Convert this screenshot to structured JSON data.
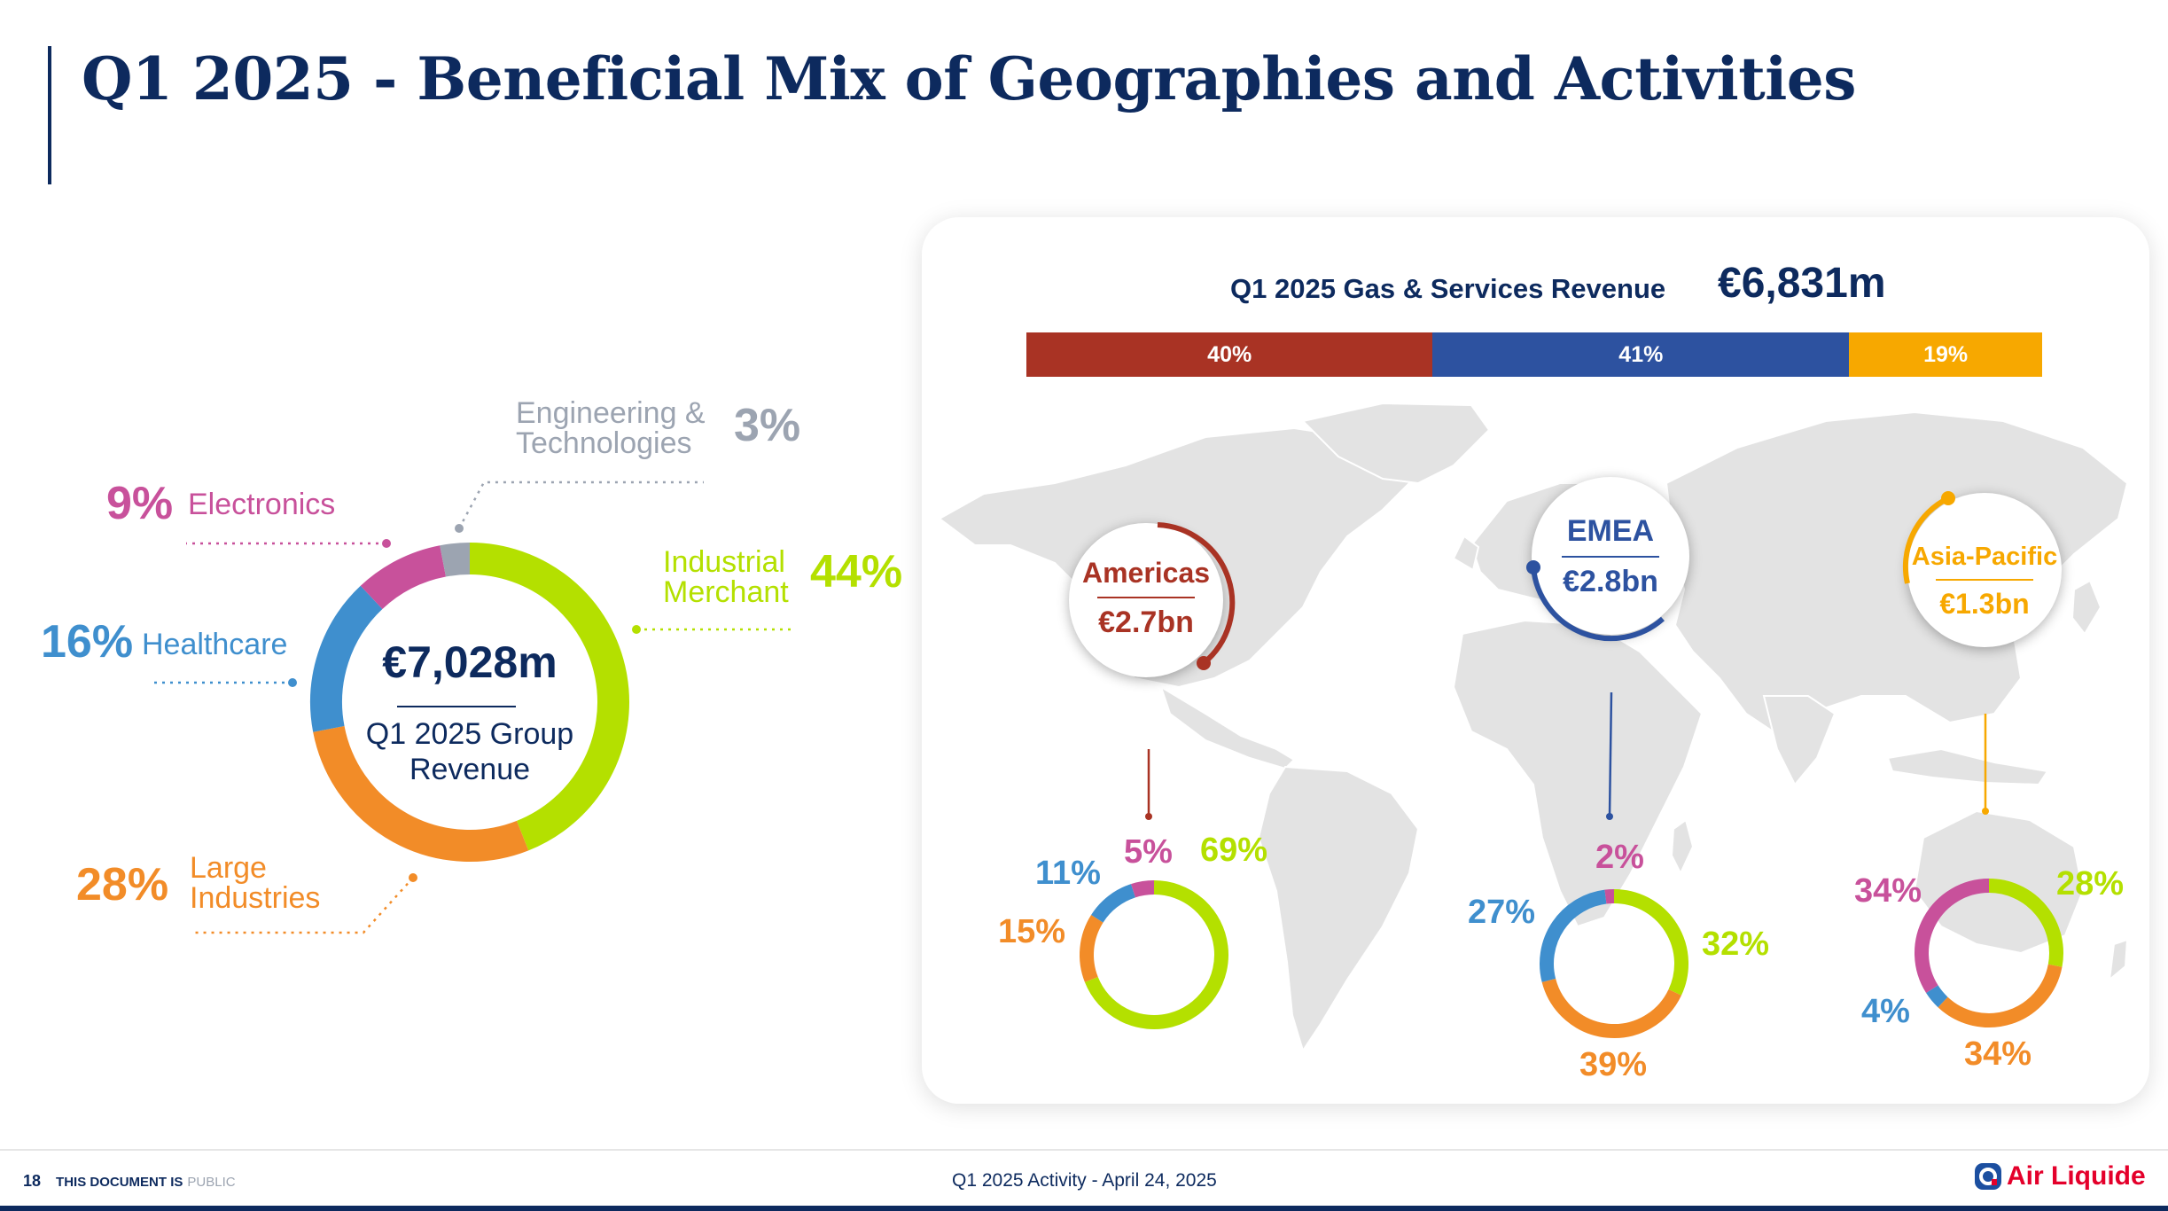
{
  "title": "Q1 2025 - Beneficial Mix of Geographies and Activities",
  "group": {
    "value": "€7,028m",
    "label_line1": "Q1 2025 Group",
    "label_line2": "Revenue",
    "segments": [
      {
        "name_line1": "Industrial",
        "name_line2": "Merchant",
        "pct_label": "44%",
        "pct": 44,
        "color": "#b4e000"
      },
      {
        "name_line1": "Large",
        "name_line2": "Industries",
        "pct_label": "28%",
        "pct": 28,
        "color": "#f28c28"
      },
      {
        "name_line1": "Healthcare",
        "name_line2": "",
        "pct_label": "16%",
        "pct": 16,
        "color": "#3f8fce"
      },
      {
        "name_line1": "Electronics",
        "name_line2": "",
        "pct_label": "9%",
        "pct": 9,
        "color": "#c8519b"
      },
      {
        "name_line1": "Engineering &",
        "name_line2": "Technologies",
        "pct_label": "3%",
        "pct": 3,
        "color": "#9ca4b1"
      }
    ]
  },
  "gas_services": {
    "title": "Q1 2025 Gas & Services Revenue",
    "value": "€6,831m",
    "bar": [
      {
        "label": "40%",
        "pct": 40,
        "color": "#a93324"
      },
      {
        "label": "41%",
        "pct": 41,
        "color": "#2d52a0"
      },
      {
        "label": "19%",
        "pct": 19,
        "color": "#f7a800"
      }
    ]
  },
  "regions": [
    {
      "name": "Americas",
      "value": "€2.7bn",
      "color": "#a93324",
      "mix": [
        {
          "label": "69%",
          "pct": 69,
          "color": "#b4e000"
        },
        {
          "label": "15%",
          "pct": 15,
          "color": "#f28c28"
        },
        {
          "label": "11%",
          "pct": 11,
          "color": "#3f8fce"
        },
        {
          "label": "5%",
          "pct": 5,
          "color": "#c8519b"
        }
      ]
    },
    {
      "name": "EMEA",
      "value": "€2.8bn",
      "color": "#2d52a0",
      "mix": [
        {
          "label": "32%",
          "pct": 32,
          "color": "#b4e000"
        },
        {
          "label": "39%",
          "pct": 39,
          "color": "#f28c28"
        },
        {
          "label": "27%",
          "pct": 27,
          "color": "#3f8fce"
        },
        {
          "label": "2%",
          "pct": 2,
          "color": "#c8519b"
        }
      ]
    },
    {
      "name": "Asia-Pacific",
      "value": "€1.3bn",
      "color": "#f7a800",
      "mix": [
        {
          "label": "28%",
          "pct": 28,
          "color": "#b4e000"
        },
        {
          "label": "34%",
          "pct": 34,
          "color": "#f28c28"
        },
        {
          "label": "4%",
          "pct": 4,
          "color": "#3f8fce"
        },
        {
          "label": "34%",
          "pct": 34,
          "color": "#c8519b"
        }
      ]
    }
  ],
  "footer": {
    "page": "18",
    "doc_is": "THIS DOCUMENT IS",
    "doc_class": "PUBLIC",
    "center": "Q1 2025 Activity  - April 24, 2025",
    "brand": "Air Liquide"
  },
  "colors": {
    "navy": "#0d2a5e",
    "map": "#e3e3e3"
  }
}
